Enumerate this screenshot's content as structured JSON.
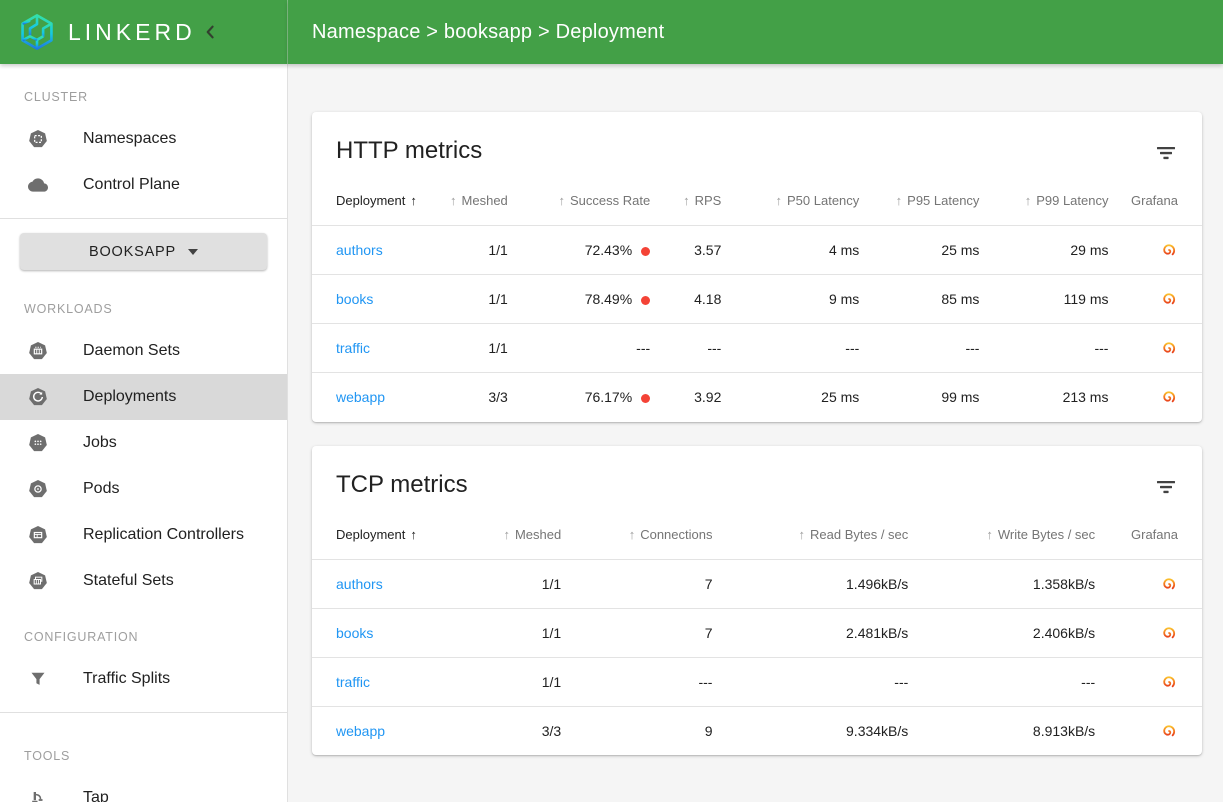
{
  "colors": {
    "header_green": "#43a047",
    "link_blue": "#2196f3",
    "status_red": "#f44336",
    "sidebar_selected": "#d9d9d9",
    "icon_gray": "#6e6e6e"
  },
  "brand": {
    "logo_text": "LINKERD"
  },
  "topbar": {
    "breadcrumb": "Namespace > booksapp > Deployment"
  },
  "icons": {
    "sort_arrow": "↑"
  },
  "sidebar": {
    "blocks": [
      {
        "type": "section",
        "label": "CLUSTER"
      },
      {
        "type": "item",
        "label": "Namespaces",
        "icon": "namespaces-icon",
        "selected": false
      },
      {
        "type": "item",
        "label": "Control Plane",
        "icon": "control-plane-icon",
        "selected": false
      },
      {
        "type": "divider"
      },
      {
        "type": "button",
        "label": "BOOKSAPP"
      },
      {
        "type": "section",
        "label": "WORKLOADS"
      },
      {
        "type": "item",
        "label": "Daemon Sets",
        "icon": "daemon-sets-icon",
        "selected": false
      },
      {
        "type": "item",
        "label": "Deployments",
        "icon": "deployments-icon",
        "selected": true
      },
      {
        "type": "item",
        "label": "Jobs",
        "icon": "jobs-icon",
        "selected": false
      },
      {
        "type": "item",
        "label": "Pods",
        "icon": "pods-icon",
        "selected": false
      },
      {
        "type": "item",
        "label": "Replication Controllers",
        "icon": "replication-controllers-icon",
        "selected": false
      },
      {
        "type": "item",
        "label": "Stateful Sets",
        "icon": "stateful-sets-icon",
        "selected": false
      },
      {
        "type": "section",
        "label": "CONFIGURATION"
      },
      {
        "type": "item",
        "label": "Traffic Splits",
        "icon": "traffic-splits-icon",
        "selected": false
      },
      {
        "type": "divider"
      },
      {
        "type": "section",
        "label": "TOOLS"
      },
      {
        "type": "item",
        "label": "Tap",
        "icon": "tap-icon",
        "selected": false
      }
    ]
  },
  "cards": [
    {
      "title": "HTTP metrics",
      "columns": [
        {
          "label": "Deployment",
          "align": "left",
          "sorted": true,
          "arrow": "after",
          "width": "14%"
        },
        {
          "label": "Meshed",
          "align": "right",
          "sorted": false,
          "arrow": "before",
          "width": "8%"
        },
        {
          "label": "Success Rate",
          "align": "right",
          "sorted": false,
          "arrow": "before",
          "width": "16%"
        },
        {
          "label": "RPS",
          "align": "right",
          "sorted": false,
          "arrow": "before",
          "width": "8%"
        },
        {
          "label": "P50 Latency",
          "align": "right",
          "sorted": false,
          "arrow": "before",
          "width": "15.5%"
        },
        {
          "label": "P95 Latency",
          "align": "right",
          "sorted": false,
          "arrow": "before",
          "width": "13.5%"
        },
        {
          "label": "P99 Latency",
          "align": "right",
          "sorted": false,
          "arrow": "before",
          "width": "14.5%"
        },
        {
          "label": "Grafana",
          "align": "right",
          "sorted": false,
          "arrow": "none",
          "width": "10.5%"
        }
      ],
      "rows": [
        {
          "cells": [
            {
              "text": "authors",
              "link": true
            },
            {
              "text": "1/1"
            },
            {
              "text": "72.43%",
              "dot": true
            },
            {
              "text": "3.57"
            },
            {
              "text": "4 ms"
            },
            {
              "text": "25 ms"
            },
            {
              "text": "29 ms"
            },
            {
              "icon": "grafana-icon"
            }
          ]
        },
        {
          "cells": [
            {
              "text": "books",
              "link": true
            },
            {
              "text": "1/1"
            },
            {
              "text": "78.49%",
              "dot": true
            },
            {
              "text": "4.18"
            },
            {
              "text": "9 ms"
            },
            {
              "text": "85 ms"
            },
            {
              "text": "119 ms"
            },
            {
              "icon": "grafana-icon"
            }
          ]
        },
        {
          "cells": [
            {
              "text": "traffic",
              "link": true
            },
            {
              "text": "1/1"
            },
            {
              "text": "---"
            },
            {
              "text": "---"
            },
            {
              "text": "---"
            },
            {
              "text": "---"
            },
            {
              "text": "---"
            },
            {
              "icon": "grafana-icon"
            }
          ]
        },
        {
          "cells": [
            {
              "text": "webapp",
              "link": true
            },
            {
              "text": "3/3"
            },
            {
              "text": "76.17%",
              "dot": true
            },
            {
              "text": "3.92"
            },
            {
              "text": "25 ms"
            },
            {
              "text": "99 ms"
            },
            {
              "text": "213 ms"
            },
            {
              "icon": "grafana-icon"
            }
          ]
        }
      ]
    },
    {
      "title": "TCP metrics",
      "columns": [
        {
          "label": "Deployment",
          "align": "left",
          "sorted": true,
          "arrow": "after",
          "width": "20%"
        },
        {
          "label": "Meshed",
          "align": "right",
          "sorted": false,
          "arrow": "before",
          "width": "8%"
        },
        {
          "label": "Connections",
          "align": "right",
          "sorted": false,
          "arrow": "before",
          "width": "17%"
        },
        {
          "label": "Read Bytes / sec",
          "align": "right",
          "sorted": false,
          "arrow": "before",
          "width": "22%"
        },
        {
          "label": "Write Bytes / sec",
          "align": "right",
          "sorted": false,
          "arrow": "before",
          "width": "21%"
        },
        {
          "label": "Grafana",
          "align": "right",
          "sorted": false,
          "arrow": "none",
          "width": "12%"
        }
      ],
      "rows": [
        {
          "cells": [
            {
              "text": "authors",
              "link": true
            },
            {
              "text": "1/1"
            },
            {
              "text": "7"
            },
            {
              "text": "1.496kB/s"
            },
            {
              "text": "1.358kB/s"
            },
            {
              "icon": "grafana-icon"
            }
          ]
        },
        {
          "cells": [
            {
              "text": "books",
              "link": true
            },
            {
              "text": "1/1"
            },
            {
              "text": "7"
            },
            {
              "text": "2.481kB/s"
            },
            {
              "text": "2.406kB/s"
            },
            {
              "icon": "grafana-icon"
            }
          ]
        },
        {
          "cells": [
            {
              "text": "traffic",
              "link": true
            },
            {
              "text": "1/1"
            },
            {
              "text": "---"
            },
            {
              "text": "---"
            },
            {
              "text": "---"
            },
            {
              "icon": "grafana-icon"
            }
          ]
        },
        {
          "cells": [
            {
              "text": "webapp",
              "link": true
            },
            {
              "text": "3/3"
            },
            {
              "text": "9"
            },
            {
              "text": "9.334kB/s"
            },
            {
              "text": "8.913kB/s"
            },
            {
              "icon": "grafana-icon"
            }
          ]
        }
      ]
    }
  ]
}
